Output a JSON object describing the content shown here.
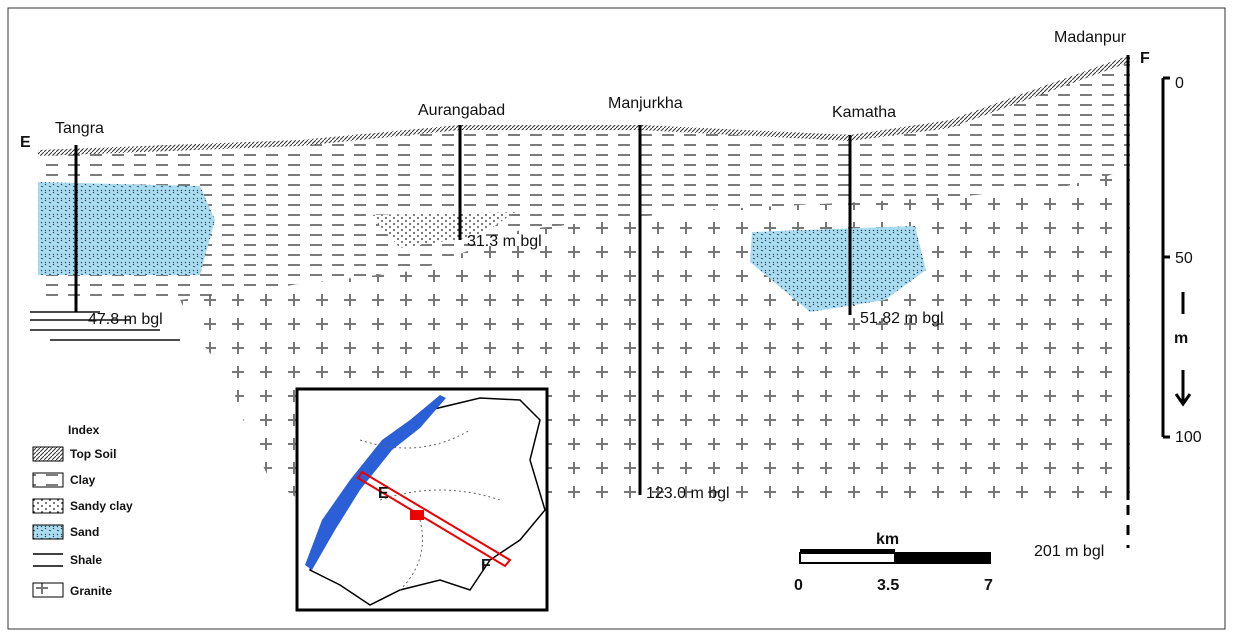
{
  "section": {
    "start_label": "E",
    "end_label": "F"
  },
  "wells": [
    {
      "name": "Tangra",
      "depth": "47.8 m bgl"
    },
    {
      "name": "Aurangabad",
      "depth": "31.3 m bgl"
    },
    {
      "name": "Manjurkha",
      "depth": "123.0 m bgl"
    },
    {
      "name": "Kamatha",
      "depth": "51.82 m bgl"
    },
    {
      "name": "Madanpur",
      "depth": "201 m bgl"
    }
  ],
  "depth_scale": {
    "ticks": [
      "0",
      "50",
      "100"
    ],
    "unit": "m"
  },
  "distance_scale": {
    "unit": "km",
    "ticks": [
      "0",
      "3.5",
      "7"
    ]
  },
  "legend": {
    "title": "Index",
    "items": [
      "Top Soil",
      "Clay",
      "Sandy clay",
      "Sand",
      "Shale",
      "Granite"
    ]
  },
  "inset_map": {
    "labels": [
      "E",
      "F"
    ]
  }
}
